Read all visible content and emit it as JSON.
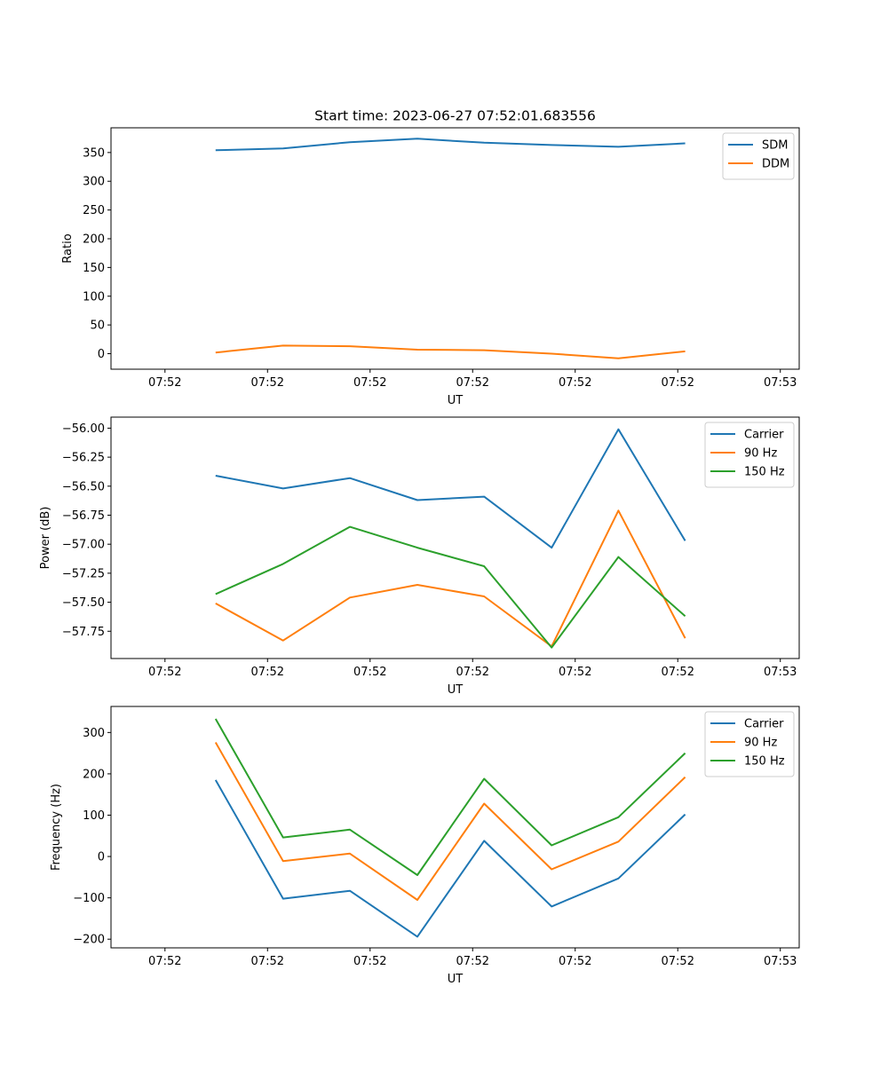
{
  "title": "Start time: 2023-06-27 07:52:01.683556",
  "chart_data": [
    {
      "type": "line",
      "xlabel": "UT",
      "ylabel": "Ratio",
      "x_tick_labels": [
        "07:52",
        "07:52",
        "07:52",
        "07:52",
        "07:52",
        "07:52",
        "07:53"
      ],
      "y_ticks": [
        0,
        50,
        100,
        150,
        200,
        250,
        300,
        350
      ],
      "y_tick_labels": [
        "0",
        "50",
        "100",
        "150",
        "200",
        "250",
        "300",
        "350"
      ],
      "ylim": [
        -27,
        393
      ],
      "x": [
        1,
        2,
        3,
        4,
        5,
        6,
        7,
        8
      ],
      "legend_position": "top-right",
      "series": [
        {
          "name": "SDM",
          "color": "#1f77b4",
          "values": [
            354,
            357,
            368,
            374,
            367,
            363,
            360,
            366
          ]
        },
        {
          "name": "DDM",
          "color": "#ff7f0e",
          "values": [
            2,
            14,
            13,
            7,
            6,
            0,
            -8,
            4
          ]
        }
      ]
    },
    {
      "type": "line",
      "xlabel": "UT",
      "ylabel": "Power (dB)",
      "x_tick_labels": [
        "07:52",
        "07:52",
        "07:52",
        "07:52",
        "07:52",
        "07:52",
        "07:53"
      ],
      "y_ticks": [
        -56.0,
        -56.25,
        -56.5,
        -56.75,
        -57.0,
        -57.25,
        -57.5,
        -57.75
      ],
      "y_tick_labels": [
        "−56.00",
        "−56.25",
        "−56.50",
        "−56.75",
        "−57.00",
        "−57.25",
        "−57.50",
        "−57.75"
      ],
      "ylim": [
        -57.985,
        -55.905
      ],
      "x": [
        1,
        2,
        3,
        4,
        5,
        6,
        7,
        8
      ],
      "legend_position": "top-right",
      "series": [
        {
          "name": "Carrier",
          "color": "#1f77b4",
          "values": [
            -56.41,
            -56.52,
            -56.43,
            -56.62,
            -56.59,
            -57.03,
            -56.01,
            -56.97
          ]
        },
        {
          "name": "90 Hz",
          "color": "#ff7f0e",
          "values": [
            -57.51,
            -57.83,
            -57.46,
            -57.35,
            -57.45,
            -57.88,
            -56.71,
            -57.81
          ]
        },
        {
          "name": "150 Hz",
          "color": "#2ca02c",
          "values": [
            -57.43,
            -57.17,
            -56.85,
            -57.03,
            -57.19,
            -57.89,
            -57.11,
            -57.62
          ]
        }
      ]
    },
    {
      "type": "line",
      "xlabel": "UT",
      "ylabel": "Frequency (Hz)",
      "x_tick_labels": [
        "07:52",
        "07:52",
        "07:52",
        "07:52",
        "07:52",
        "07:52",
        "07:53"
      ],
      "y_ticks": [
        -200,
        -100,
        0,
        100,
        200,
        300
      ],
      "y_tick_labels": [
        "−200",
        "−100",
        "0",
        "100",
        "200",
        "300"
      ],
      "ylim": [
        -221,
        363
      ],
      "x": [
        1,
        2,
        3,
        4,
        5,
        6,
        7,
        8
      ],
      "legend_position": "top-right",
      "series": [
        {
          "name": "Carrier",
          "color": "#1f77b4",
          "values": [
            185,
            -102,
            -83,
            -194,
            38,
            -121,
            -53,
            102
          ]
        },
        {
          "name": "90 Hz",
          "color": "#ff7f0e",
          "values": [
            276,
            -11,
            7,
            -105,
            128,
            -31,
            36,
            192
          ]
        },
        {
          "name": "150 Hz",
          "color": "#2ca02c",
          "values": [
            333,
            46,
            65,
            -45,
            188,
            27,
            95,
            250
          ]
        }
      ]
    }
  ]
}
